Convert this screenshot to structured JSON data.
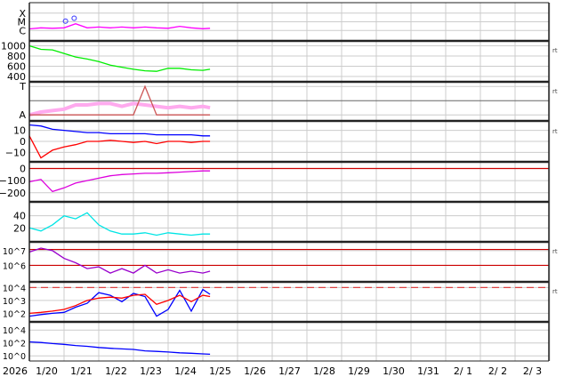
{
  "chart_data": {
    "type": "line",
    "x_axis": {
      "year_label": "2026",
      "tick_labels": [
        "1/20",
        "1/21",
        "1/22",
        "1/23",
        "1/24",
        "1/25",
        "1/26",
        "1/27",
        "1/28",
        "1/29",
        "1/30",
        "1/31",
        "2/ 1",
        "2/ 2",
        "2/ 3"
      ]
    },
    "times": [
      "01-19 00",
      "01-19 08",
      "01-19 16",
      "01-20 00",
      "01-20 08",
      "01-20 16",
      "01-21 00",
      "01-21 08",
      "01-21 16",
      "01-22 00",
      "01-22 08",
      "01-22 16",
      "01-23 00",
      "01-23 08",
      "01-23 16",
      "01-24 00",
      "01-24 05"
    ],
    "right_markers": [
      "rt",
      "rt",
      "rt",
      "rt",
      "rt"
    ],
    "panels": [
      {
        "scale": "log",
        "ylim": [
          1e-07,
          0.001
        ],
        "ticks": [
          {
            "v": 1e-06,
            "label": "C"
          },
          {
            "v": 1e-05,
            "label": "M"
          },
          {
            "v": 0.0001,
            "label": "X"
          }
        ],
        "series": [
          {
            "color": "#ff00ff",
            "values": [
              1.5e-06,
              2e-06,
              1.8e-06,
              2e-06,
              6e-06,
              2e-06,
              2.5e-06,
              2e-06,
              2.5e-06,
              2e-06,
              2.5e-06,
              2e-06,
              1.8e-06,
              3e-06,
              2e-06,
              1.6e-06,
              1.8e-06
            ]
          }
        ],
        "markers": [
          {
            "time": "01-20 01",
            "value": 1.2e-05
          },
          {
            "time": "01-20 07",
            "value": 2.6e-05
          }
        ]
      },
      {
        "scale": "linear",
        "ylim": [
          330,
          1060
        ],
        "ticks": [
          {
            "v": 400,
            "label": "400"
          },
          {
            "v": 600,
            "label": "600"
          },
          {
            "v": 800,
            "label": "800"
          },
          {
            "v": 1000,
            "label": "1000"
          }
        ],
        "series": [
          {
            "color": "#00ee00",
            "values": [
              1000,
              930,
              920,
              850,
              780,
              740,
              690,
              620,
              580,
              540,
              510,
              500,
              560,
              560,
              530,
              520,
              540
            ]
          }
        ]
      },
      {
        "scale": "linear",
        "ylim": [
          -1.3,
          1.2
        ],
        "ticks": [
          {
            "v": -1,
            "label": "A"
          },
          {
            "v": 1,
            "label": "T"
          }
        ],
        "series": [
          {
            "color": "#ffaaee",
            "values": [
              -1,
              -0.8,
              -0.7,
              -0.6,
              -0.3,
              -0.3,
              -0.2,
              -0.2,
              -0.4,
              -0.2,
              -0.3,
              -0.4,
              -0.5,
              -0.4,
              -0.5,
              -0.4,
              -0.5
            ]
          },
          {
            "color": "#cc5555",
            "values": [
              -1,
              -1,
              -1,
              -1,
              -1,
              -1,
              -1,
              -1,
              -1,
              -1,
              1,
              -1,
              -1,
              -1,
              -1,
              -1,
              -1
            ]
          }
        ]
      },
      {
        "scale": "linear",
        "ylim": [
          -17,
          17
        ],
        "ticks": [
          {
            "v": -10,
            "label": "−10"
          },
          {
            "v": 0,
            "label": "0"
          },
          {
            "v": 10,
            "label": "10"
          }
        ],
        "series": [
          {
            "color": "#0000ff",
            "values": [
              15,
              14,
              11,
              10,
              9,
              8,
              8,
              7,
              7,
              7,
              7,
              6,
              6,
              6,
              6,
              5,
              5
            ]
          },
          {
            "color": "#ff0000",
            "values": [
              5,
              -15,
              -8,
              -5,
              -3,
              0,
              0,
              1,
              0,
              -1,
              0,
              -2,
              0,
              0,
              -1,
              0,
              0
            ]
          }
        ]
      },
      {
        "scale": "linear",
        "ylim": [
          -260,
          40
        ],
        "ticks": [
          {
            "v": -200,
            "label": "−200"
          },
          {
            "v": -100,
            "label": "−100"
          },
          {
            "v": 0,
            "label": "0"
          }
        ],
        "series": [
          {
            "color": "#dd00dd",
            "values": [
              -110,
              -90,
              -190,
              -160,
              -120,
              -100,
              -80,
              -60,
              -50,
              -45,
              -40,
              -40,
              -35,
              -30,
              -25,
              -20,
              -20
            ]
          }
        ],
        "reference_lines": [
          {
            "v": 0,
            "color": "#cc0000"
          }
        ]
      },
      {
        "scale": "linear",
        "ylim": [
          0,
          60
        ],
        "ticks": [
          {
            "v": 20,
            "label": "20"
          },
          {
            "v": 40,
            "label": "40"
          }
        ],
        "series": [
          {
            "color": "#00e5e5",
            "values": [
              20,
              15,
              25,
              40,
              35,
              45,
              25,
              15,
              10,
              10,
              12,
              8,
              12,
              10,
              8,
              10,
              10
            ]
          }
        ]
      },
      {
        "scale": "log",
        "ylim": [
          100000.0,
          30000000.0
        ],
        "ticks": [
          {
            "v": 1000000.0,
            "label": "10^6"
          },
          {
            "v": 10000000.0,
            "label": "10^7"
          }
        ],
        "series": [
          {
            "color": "#9900cc",
            "values": [
              8000000.0,
              15000000.0,
              10000000.0,
              3000000.0,
              1500000.0,
              600000.0,
              800000.0,
              300000.0,
              600000.0,
              300000.0,
              1000000.0,
              300000.0,
              500000.0,
              300000.0,
              400000.0,
              300000.0,
              400000.0
            ]
          }
        ],
        "reference_lines": [
          {
            "v": 12000000.0,
            "color": "#cc0000"
          },
          {
            "v": 1000000.0,
            "color": "#cc0000"
          }
        ]
      },
      {
        "scale": "log",
        "ylim": [
          30,
          20000.0
        ],
        "ticks": [
          {
            "v": 100,
            "label": "10^2"
          },
          {
            "v": 1000,
            "label": "10^3"
          },
          {
            "v": 10000,
            "label": "10^4"
          }
        ],
        "series": [
          {
            "color": "#0000ff",
            "values": [
              60,
              80,
              100,
              120,
              300,
              600,
              4000,
              2500,
              800,
              3500,
              2000,
              60,
              200,
              6000,
              150,
              7000,
              3000
            ]
          },
          {
            "color": "#ff0000",
            "values": [
              100,
              120,
              150,
              200,
              400,
              1000,
              1500,
              1800,
              1500,
              2500,
              3000,
              500,
              1000,
              2500,
              800,
              2500,
              2000
            ]
          }
        ],
        "reference_lines": [
          {
            "v": 10000,
            "color": "#dd4444",
            "dash": true
          }
        ]
      },
      {
        "scale": "log",
        "ylim": [
          0.3,
          100000.0
        ],
        "ticks": [
          {
            "v": 1,
            "label": "10^0"
          },
          {
            "v": 100,
            "label": "10^2"
          },
          {
            "v": 10000,
            "label": "10^4"
          }
        ],
        "series": [
          {
            "color": "#0000ff",
            "values": [
              150,
              120,
              80,
              60,
              40,
              30,
              20,
              15,
              12,
              10,
              6,
              5,
              4,
              3,
              2.5,
              2,
              1.8
            ]
          }
        ]
      }
    ]
  }
}
